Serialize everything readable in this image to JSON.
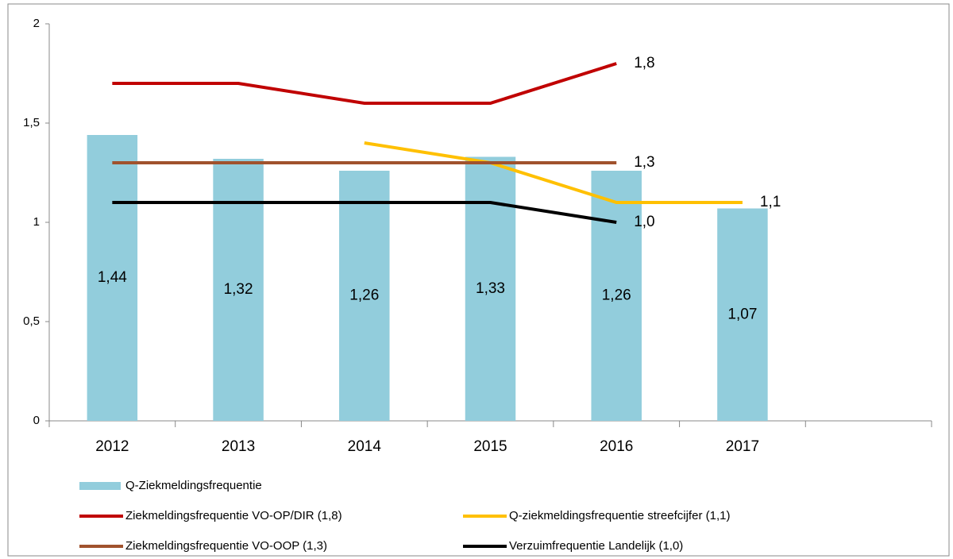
{
  "chart_data": {
    "type": "bar",
    "categories": [
      "2012",
      "2013",
      "2014",
      "2015",
      "2016",
      "2017",
      null
    ],
    "ylim": [
      0,
      2
    ],
    "yticks": [
      0,
      {
        "value": 0.5,
        "label": "0,5"
      },
      1,
      {
        "value": 1.5,
        "label": "1,5"
      },
      2
    ],
    "grid": false,
    "legend": "bottom",
    "series": [
      {
        "name": "Q-Ziekmeldingsfrequentie",
        "type": "bar",
        "color": "#92cddc",
        "values": [
          1.44,
          1.32,
          1.26,
          1.33,
          1.26,
          1.07,
          null
        ],
        "value_labels": [
          "1,44",
          "1,32",
          "1,26",
          "1,33",
          "1,26",
          "1,07",
          null
        ]
      },
      {
        "name": "Q-ziekmeldingsfrequentie streefcijfer (1,1)",
        "type": "line",
        "color": "#ffc000",
        "values": [
          null,
          null,
          1.4,
          1.3,
          1.1,
          1.1,
          null
        ],
        "value_labels": [
          null,
          null,
          null,
          null,
          null,
          "1,1",
          null
        ]
      },
      {
        "name": "Ziekmeldingsfrequentie VO-OP/DIR (1,8)",
        "type": "line",
        "color": "#c00000",
        "values": [
          1.7,
          1.7,
          1.6,
          1.6,
          1.8,
          null,
          null
        ],
        "value_labels": [
          null,
          null,
          null,
          null,
          "1,8",
          null,
          null
        ]
      },
      {
        "name": "Verzuimfrequentie Landelijk (1,0)",
        "type": "line",
        "color": "#000000",
        "values": [
          1.1,
          1.1,
          1.1,
          1.1,
          1.0,
          null,
          null
        ],
        "value_labels": [
          null,
          null,
          null,
          null,
          "1,0",
          null,
          null
        ]
      },
      {
        "name": "Ziekmeldingsfrequentie VO-OOP (1,3)",
        "type": "line",
        "color": "#a0522d",
        "values": [
          1.3,
          1.3,
          1.3,
          1.3,
          1.3,
          null,
          null
        ],
        "value_labels": [
          null,
          null,
          null,
          null,
          "1,3",
          null,
          null
        ]
      }
    ]
  }
}
